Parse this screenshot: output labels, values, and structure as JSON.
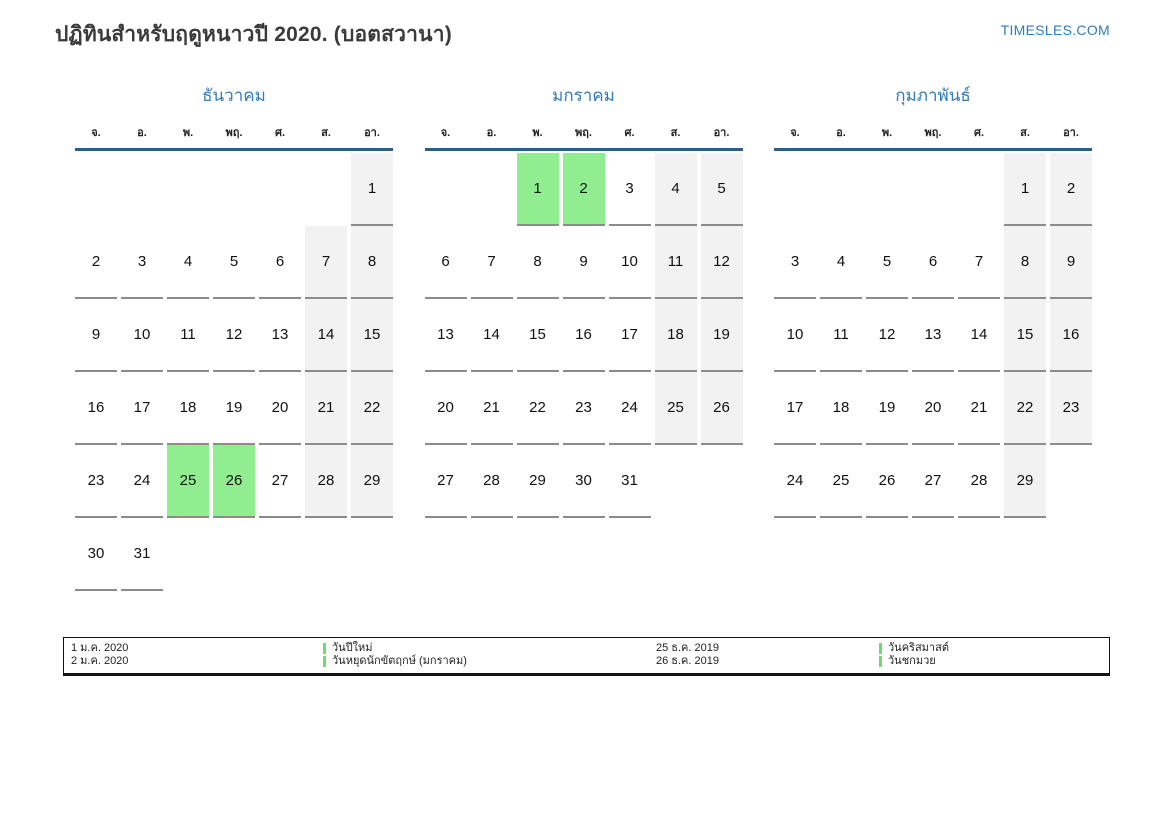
{
  "header": {
    "title": "ปฏิทินสำหรับฤดูหนาวปี 2020. (บอตสวานา)",
    "site": "TIMESLES.COM"
  },
  "weekdays": [
    "จ.",
    "อ.",
    "พ.",
    "พฤ.",
    "ศ.",
    "ส.",
    "อา."
  ],
  "months": [
    {
      "name": "ธันวาคม",
      "holiday_days": [
        25,
        26
      ],
      "weeks": [
        [
          "",
          "",
          "",
          "",
          "",
          "",
          "1"
        ],
        [
          "2",
          "3",
          "4",
          "5",
          "6",
          "7",
          "8"
        ],
        [
          "9",
          "10",
          "11",
          "12",
          "13",
          "14",
          "15"
        ],
        [
          "16",
          "17",
          "18",
          "19",
          "20",
          "21",
          "22"
        ],
        [
          "23",
          "24",
          "25",
          "26",
          "27",
          "28",
          "29"
        ],
        [
          "30",
          "31",
          "",
          "",
          "",
          "",
          ""
        ]
      ]
    },
    {
      "name": "มกราคม",
      "holiday_days": [
        1,
        2
      ],
      "weeks": [
        [
          "",
          "",
          "1",
          "2",
          "3",
          "4",
          "5"
        ],
        [
          "6",
          "7",
          "8",
          "9",
          "10",
          "11",
          "12"
        ],
        [
          "13",
          "14",
          "15",
          "16",
          "17",
          "18",
          "19"
        ],
        [
          "20",
          "21",
          "22",
          "23",
          "24",
          "25",
          "26"
        ],
        [
          "27",
          "28",
          "29",
          "30",
          "31",
          "",
          ""
        ]
      ]
    },
    {
      "name": "กุมภาพันธ์",
      "holiday_days": [],
      "weeks": [
        [
          "",
          "",
          "",
          "",
          "",
          "1",
          "2"
        ],
        [
          "3",
          "4",
          "5",
          "6",
          "7",
          "8",
          "9"
        ],
        [
          "10",
          "11",
          "12",
          "13",
          "14",
          "15",
          "16"
        ],
        [
          "17",
          "18",
          "19",
          "20",
          "21",
          "22",
          "23"
        ],
        [
          "24",
          "25",
          "26",
          "27",
          "28",
          "29",
          ""
        ]
      ]
    }
  ],
  "legend": [
    {
      "date": "1 ม.ค. 2020",
      "label": "วันปีใหม่"
    },
    {
      "date": "2 ม.ค. 2020",
      "label": "วันหยุดนักขัตฤกษ์ (มกราคม)"
    },
    {
      "date": "25 ธ.ค. 2019",
      "label": "วันคริสมาสต์"
    },
    {
      "date": "26 ธ.ค. 2019",
      "label": "วันชกมวย"
    }
  ],
  "colors": {
    "accent_blue": "#2e7cc0",
    "rule_navy": "#2e5c8c",
    "holiday_green": "#90ee90",
    "weekend_gray": "#f2f2f2",
    "cell_border": "#8c8c8c",
    "legend_green": "#6edb6e"
  }
}
